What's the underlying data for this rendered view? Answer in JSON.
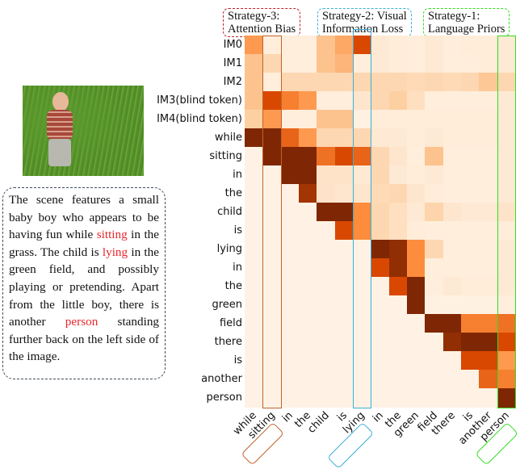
{
  "caption": {
    "parts": [
      {
        "text": "The scene features a small baby boy who appears to be having fun while ",
        "highlight": false
      },
      {
        "text": "sitting",
        "highlight": true
      },
      {
        "text": " in the grass. The child is ",
        "highlight": false
      },
      {
        "text": "lying",
        "highlight": true
      },
      {
        "text": " in the green field, and possibly playing or pretending. Apart from the little boy, there is another ",
        "highlight": false
      },
      {
        "text": "person",
        "highlight": true
      },
      {
        "text": " standing further back on the left side of the image.",
        "highlight": false
      }
    ],
    "highlight_color": "#e8262b"
  },
  "strategies": [
    {
      "line1": "Strategy-3:",
      "line2": "Attention Bias",
      "color": "#c0202a"
    },
    {
      "line1": "Strategy-2: Visual",
      "line2": "Information Loss",
      "color": "#3ab0d8"
    },
    {
      "line1": "Strategy-1:",
      "line2": "Language Priors",
      "color": "#33dd22"
    }
  ],
  "chart_data": {
    "type": "heatmap",
    "colormap": "Oranges",
    "rows": [
      "IM0",
      "IM1",
      "IM2",
      "IM3(blind token)",
      "IM4(blind token)",
      "while",
      "sitting",
      "in",
      "the",
      "child",
      "is",
      "lying",
      "in",
      "the",
      "green",
      "field",
      "there",
      "is",
      "another",
      "person"
    ],
    "columns": [
      "while",
      "sitting",
      "in",
      "the",
      "child",
      "is",
      "lying",
      "in",
      "the",
      "green",
      "field",
      "there",
      "is",
      "another",
      "person"
    ],
    "highlighted_columns": [
      {
        "column": "sitting",
        "color": "#c0622a"
      },
      {
        "column": "lying",
        "color": "#3ab0d8"
      },
      {
        "column": "person",
        "color": "#33dd22"
      }
    ],
    "values": [
      [
        0.45,
        0.05,
        0.05,
        0.05,
        0.3,
        0.4,
        0.75,
        0.08,
        0.06,
        0.05,
        0.08,
        0.05,
        0.06,
        0.06,
        0.08
      ],
      [
        0.3,
        0.2,
        0.05,
        0.05,
        0.3,
        0.35,
        0.05,
        0.08,
        0.06,
        0.05,
        0.08,
        0.05,
        0.05,
        0.06,
        0.08
      ],
      [
        0.3,
        0.05,
        0.2,
        0.2,
        0.2,
        0.2,
        0.2,
        0.2,
        0.2,
        0.18,
        0.2,
        0.18,
        0.2,
        0.28,
        0.2
      ],
      [
        0.3,
        0.75,
        0.55,
        0.45,
        0.05,
        0.05,
        0.1,
        0.2,
        0.25,
        0.15,
        0.05,
        0.05,
        0.05,
        0.05,
        0.08
      ],
      [
        0.25,
        0.45,
        0.05,
        0.05,
        0.3,
        0.3,
        0.03,
        0.06,
        0.06,
        0.06,
        0.06,
        0.06,
        0.06,
        0.06,
        0.08
      ],
      [
        1,
        1,
        0.65,
        0.45,
        0.2,
        0.2,
        0.2,
        0.08,
        0.08,
        0.06,
        0.08,
        0.06,
        0.06,
        0.06,
        0.08
      ],
      [
        0.02,
        1,
        1,
        1,
        0.6,
        0.75,
        0.65,
        0.2,
        0.1,
        0.05,
        0.3,
        0.05,
        0.05,
        0.05,
        0.08
      ],
      [
        0.02,
        0.02,
        1,
        1,
        0.12,
        0.12,
        0.08,
        0.2,
        0.08,
        0.06,
        0.08,
        0.05,
        0.05,
        0.05,
        0.08
      ],
      [
        0.02,
        0.02,
        0.02,
        0.9,
        0.12,
        0.1,
        0.1,
        0.18,
        0.2,
        0.1,
        0.06,
        0.05,
        0.05,
        0.05,
        0.08
      ],
      [
        0.02,
        0.02,
        0.02,
        0.02,
        1,
        1,
        0.5,
        0.2,
        0.15,
        0.08,
        0.22,
        0.1,
        0.08,
        0.08,
        0.12
      ],
      [
        0.02,
        0.02,
        0.02,
        0.02,
        0.02,
        0.75,
        0.5,
        0.2,
        0.15,
        0.06,
        0.05,
        0.05,
        0.05,
        0.05,
        0.06
      ],
      [
        0.02,
        0.02,
        0.02,
        0.02,
        0.02,
        0.02,
        0.02,
        1,
        0.95,
        0.5,
        0.2,
        0.05,
        0.05,
        0.05,
        0.08
      ],
      [
        0.02,
        0.02,
        0.02,
        0.02,
        0.02,
        0.02,
        0.02,
        0.75,
        0.95,
        0.5,
        0.05,
        0.05,
        0.05,
        0.05,
        0.08
      ],
      [
        0.02,
        0.02,
        0.02,
        0.02,
        0.02,
        0.02,
        0.02,
        0.02,
        0.75,
        1,
        0.05,
        0.08,
        0.06,
        0.06,
        0.08
      ],
      [
        0.02,
        0.02,
        0.02,
        0.02,
        0.02,
        0.02,
        0.02,
        0.02,
        0.02,
        1,
        0.03,
        0.03,
        0.03,
        0.03,
        0.05
      ],
      [
        0.02,
        0.02,
        0.02,
        0.02,
        0.02,
        0.02,
        0.02,
        0.02,
        0.02,
        0.02,
        1,
        1,
        0.55,
        0.55,
        0.6
      ],
      [
        0.02,
        0.02,
        0.02,
        0.02,
        0.02,
        0.02,
        0.02,
        0.02,
        0.02,
        0.02,
        0.02,
        0.95,
        1,
        1,
        0.75
      ],
      [
        0.02,
        0.02,
        0.02,
        0.02,
        0.02,
        0.02,
        0.02,
        0.02,
        0.02,
        0.02,
        0.02,
        0.02,
        0.75,
        0.75,
        0.45
      ],
      [
        0.02,
        0.02,
        0.02,
        0.02,
        0.02,
        0.02,
        0.02,
        0.02,
        0.02,
        0.02,
        0.02,
        0.02,
        0.02,
        0.65,
        0.55
      ],
      [
        0.02,
        0.02,
        0.02,
        0.02,
        0.02,
        0.02,
        0.02,
        0.02,
        0.02,
        0.02,
        0.02,
        0.02,
        0.02,
        0.02,
        1
      ]
    ]
  }
}
